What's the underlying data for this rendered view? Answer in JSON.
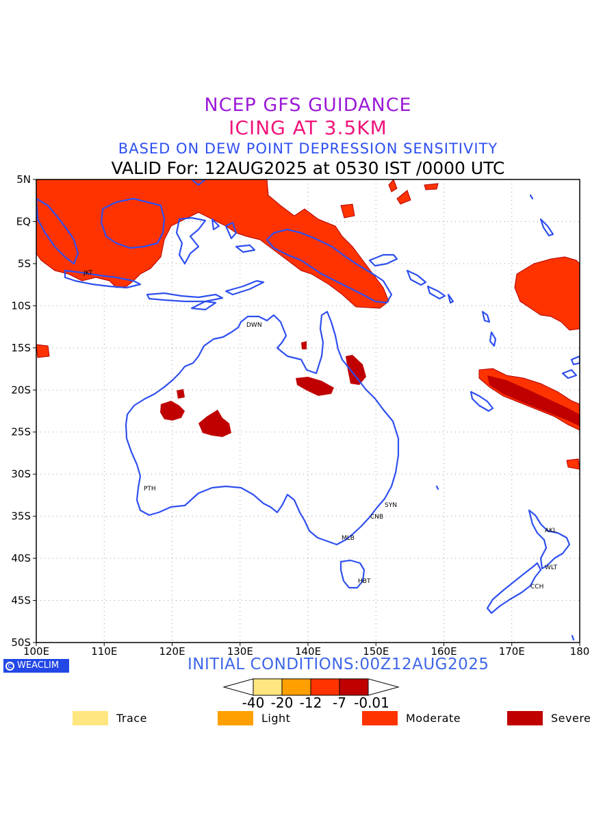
{
  "header": {
    "line1": "NCEP GFS GUIDANCE",
    "line2": "ICING AT 3.5KM",
    "line3": "BASED ON DEW POINT DEPRESSION SENSITIVITY",
    "line4": "VALID For: 12AUG2025 at 0530 IST /0000 UTC"
  },
  "map": {
    "lon_range": [
      100,
      180
    ],
    "lat_range": [
      -50,
      5
    ],
    "lon_ticks": [
      "100E",
      "110E",
      "120E",
      "130E",
      "140E",
      "150E",
      "160E",
      "170E",
      "180"
    ],
    "lat_ticks": [
      "5N",
      "EQ",
      "5S",
      "10S",
      "15S",
      "20S",
      "25S",
      "30S",
      "35S",
      "40S",
      "45S",
      "50S"
    ],
    "grid": "dotted",
    "coast_color": "#2e4ff0",
    "stations": [
      {
        "label": "JKT"
      },
      {
        "label": "DWN"
      },
      {
        "label": "PTH"
      },
      {
        "label": "SYN"
      },
      {
        "label": "CNB"
      },
      {
        "label": "MLB"
      },
      {
        "label": "HBT"
      },
      {
        "label": "AKL"
      },
      {
        "label": "WLT"
      },
      {
        "label": "CCH"
      }
    ]
  },
  "footer": {
    "badge": "WEACLIM",
    "initial_conditions": "INITIAL CONDITIONS:00Z12AUG2025"
  },
  "colorbar": {
    "colors": [
      "#ffe680",
      "#ffa000",
      "#ff3300",
      "#c00000"
    ],
    "labels": [
      "-40",
      "-20",
      "-12",
      "-7",
      "-0.01"
    ]
  },
  "legend": [
    {
      "label": "Trace",
      "color": "#ffe680"
    },
    {
      "label": "Light",
      "color": "#ffa000"
    },
    {
      "label": "Moderate",
      "color": "#ff3300"
    },
    {
      "label": "Severe",
      "color": "#c00000"
    }
  ]
}
